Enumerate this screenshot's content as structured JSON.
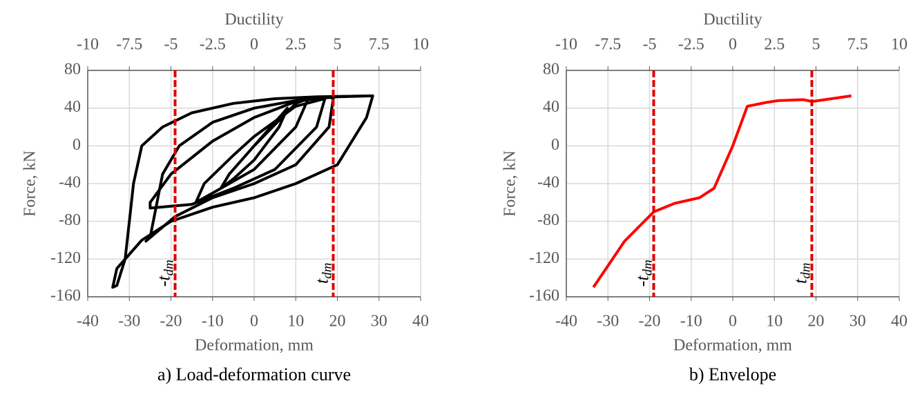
{
  "chart_data": [
    {
      "type": "line",
      "caption": "a) Load-deformation curve",
      "x_title": "Deformation, mm",
      "y_title": "Force, kN",
      "x2_title": "Ductility",
      "xlim": [
        -40,
        40
      ],
      "xticks": [
        -40,
        -30,
        -20,
        -10,
        0,
        10,
        20,
        30,
        40
      ],
      "ylim": [
        -160,
        80
      ],
      "yticks": [
        -160,
        -120,
        -80,
        -40,
        0,
        40,
        80
      ],
      "x2lim": [
        -10,
        10
      ],
      "x2ticks": [
        -10,
        -7.5,
        -5,
        -2.5,
        0,
        2.5,
        5,
        7.5,
        10
      ],
      "grid": true,
      "vlines": [
        {
          "x": -19,
          "label": "-t",
          "sub": "dm",
          "color": "#e00000"
        },
        {
          "x": 19,
          "label": "t",
          "sub": "dm",
          "color": "#e00000"
        }
      ],
      "x": [
        0,
        5,
        8,
        6,
        0,
        -5,
        -8,
        -6,
        0,
        10,
        13,
        10,
        0,
        -10,
        -14,
        -12,
        -5,
        0,
        10,
        17,
        15,
        5,
        -5,
        -15,
        -25,
        -25,
        -20,
        -10,
        0,
        10,
        18,
        19,
        18,
        10,
        0,
        -10,
        -19,
        -26,
        -25,
        -22,
        -18,
        -10,
        0,
        10,
        20,
        28.5,
        27,
        20,
        10,
        0,
        -10,
        -20,
        -27,
        -33,
        -34,
        -33,
        -31,
        -30,
        -29,
        -27,
        -22,
        -15,
        -5,
        5,
        15,
        28
      ],
      "series": [
        {
          "color": "#000000",
          "values": [
            0,
            25,
            40,
            20,
            -15,
            -35,
            -45,
            -30,
            0,
            45,
            50,
            20,
            -25,
            -50,
            -60,
            -40,
            -10,
            10,
            42,
            50,
            20,
            -25,
            -45,
            -62,
            -66,
            -60,
            -30,
            5,
            30,
            47,
            52,
            50,
            20,
            -20,
            -40,
            -55,
            -75,
            -101,
            -97,
            -30,
            0,
            25,
            40,
            48,
            52,
            53,
            30,
            -20,
            -40,
            -55,
            -65,
            -80,
            -100,
            -130,
            -150,
            -148,
            -120,
            -80,
            -40,
            0,
            20,
            35,
            45,
            50,
            52,
            53
          ]
        }
      ]
    },
    {
      "type": "line",
      "caption": "b) Envelope",
      "x_title": "Deformation, mm",
      "y_title": "Force, kN",
      "x2_title": "Ductility",
      "xlim": [
        -40,
        40
      ],
      "xticks": [
        -40,
        -30,
        -20,
        -10,
        0,
        10,
        20,
        30,
        40
      ],
      "ylim": [
        -160,
        80
      ],
      "yticks": [
        -160,
        -120,
        -80,
        -40,
        0,
        40,
        80
      ],
      "x2lim": [
        -10,
        10
      ],
      "x2ticks": [
        -10,
        -7.5,
        -5,
        -2.5,
        0,
        2.5,
        5,
        7.5,
        10
      ],
      "grid": true,
      "vlines": [
        {
          "x": -19,
          "label": "-t",
          "sub": "dm",
          "color": "#e00000"
        },
        {
          "x": 19,
          "label": "t",
          "sub": "dm",
          "color": "#e00000"
        }
      ],
      "x": [
        -33.5,
        -26,
        -19,
        -14,
        -8,
        -4.5,
        0,
        3.5,
        8,
        11,
        17,
        19,
        28.5
      ],
      "series": [
        {
          "color": "#ff0000",
          "values": [
            -150,
            -101,
            -70,
            -61,
            -55,
            -45,
            0,
            42,
            46,
            48,
            49,
            47,
            53
          ]
        }
      ]
    }
  ]
}
